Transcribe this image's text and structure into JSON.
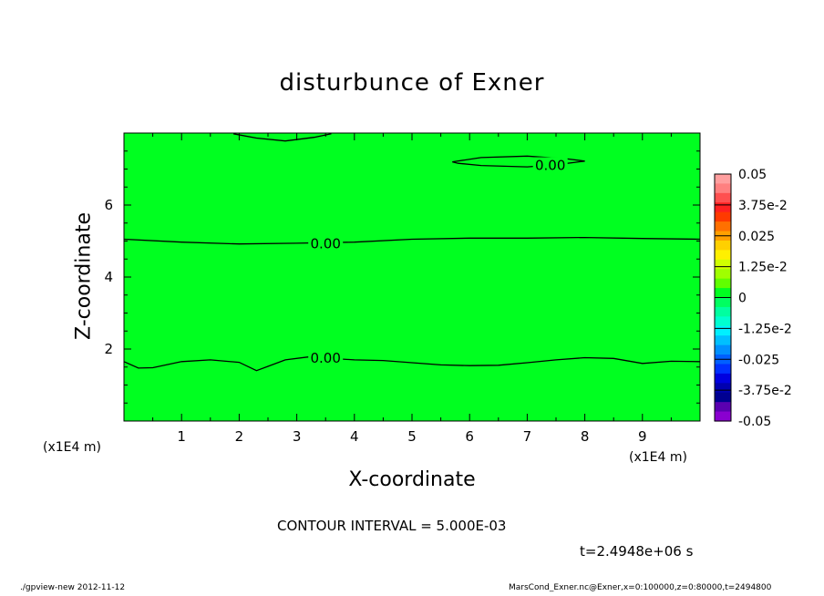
{
  "chart_data": {
    "type": "contour",
    "title": "disturbunce of Exner",
    "xlabel": "X-coordinate",
    "ylabel": "Z-coordinate",
    "x_unit_label": "(x1E4 m)",
    "xlim": [
      0,
      10
    ],
    "ylim": [
      0,
      8
    ],
    "xticks": [
      "1",
      "2",
      "3",
      "4",
      "5",
      "6",
      "7",
      "8",
      "9"
    ],
    "yticks": [
      "2",
      "4",
      "6"
    ],
    "field_color": "#00ff20",
    "contour_labels": [
      {
        "text": "0.00",
        "x": 3.5,
        "z": 1.75
      },
      {
        "text": "0.00",
        "x": 3.5,
        "z": 4.92
      },
      {
        "text": "0.00",
        "x": 7.4,
        "z": 7.1
      }
    ],
    "contours": [
      {
        "name": "lower",
        "points": [
          [
            0,
            1.65
          ],
          [
            0.25,
            1.47
          ],
          [
            0.5,
            1.48
          ],
          [
            1.0,
            1.65
          ],
          [
            1.5,
            1.7
          ],
          [
            2.0,
            1.63
          ],
          [
            2.3,
            1.4
          ],
          [
            2.5,
            1.52
          ],
          [
            2.8,
            1.7
          ],
          [
            3.2,
            1.78
          ],
          [
            4.0,
            1.7
          ],
          [
            4.5,
            1.68
          ],
          [
            5.0,
            1.62
          ],
          [
            5.5,
            1.56
          ],
          [
            6.0,
            1.54
          ],
          [
            6.5,
            1.55
          ],
          [
            7.0,
            1.62
          ],
          [
            7.5,
            1.7
          ],
          [
            8.0,
            1.76
          ],
          [
            8.5,
            1.74
          ],
          [
            9.0,
            1.6
          ],
          [
            9.5,
            1.66
          ],
          [
            10,
            1.65
          ]
        ]
      },
      {
        "name": "middle",
        "points": [
          [
            0,
            5.05
          ],
          [
            1.0,
            4.97
          ],
          [
            2.0,
            4.92
          ],
          [
            3.0,
            4.94
          ],
          [
            4.0,
            4.97
          ],
          [
            5.0,
            5.05
          ],
          [
            6.0,
            5.08
          ],
          [
            7.0,
            5.08
          ],
          [
            8.0,
            5.1
          ],
          [
            9.0,
            5.07
          ],
          [
            10,
            5.05
          ]
        ]
      },
      {
        "name": "upper-closed",
        "points": [
          [
            5.7,
            7.2
          ],
          [
            6.2,
            7.32
          ],
          [
            7.0,
            7.36
          ],
          [
            7.7,
            7.28
          ],
          [
            8.0,
            7.22
          ],
          [
            7.5,
            7.12
          ],
          [
            7.0,
            7.06
          ],
          [
            6.2,
            7.1
          ],
          [
            5.8,
            7.16
          ],
          [
            5.7,
            7.2
          ]
        ]
      },
      {
        "name": "top-edge",
        "points": [
          [
            1.9,
            7.98
          ],
          [
            2.3,
            7.86
          ],
          [
            2.8,
            7.78
          ],
          [
            3.3,
            7.88
          ],
          [
            3.6,
            7.98
          ]
        ]
      }
    ],
    "colorbar": {
      "labels": [
        "0.05",
        "3.75e-2",
        "0.025",
        "1.25e-2",
        "0",
        "-1.25e-2",
        "-0.025",
        "-3.75e-2",
        "-0.05"
      ],
      "colors": [
        "#ff9f9f",
        "#ff8080",
        "#ff5050",
        "#ff2020",
        "#ff3a00",
        "#ff7000",
        "#ffa000",
        "#ffd000",
        "#fff000",
        "#d0ff00",
        "#a0ff00",
        "#60ff00",
        "#00ff20",
        "#00ff60",
        "#00ffa0",
        "#00ffd0",
        "#00f0ff",
        "#00c0ff",
        "#0090ff",
        "#0060ff",
        "#0030ff",
        "#0000e0",
        "#0000b0",
        "#000090",
        "#5a00b0",
        "#8a00d0"
      ]
    }
  },
  "annotations": {
    "contour_interval": "CONTOUR INTERVAL = 5.000E-03",
    "time": "t=2.4948e+06 s",
    "footer_left": "./gpview-new  2012-11-12",
    "footer_right": "MarsCond_Exner.nc@Exner,x=0:100000,z=0:80000,t=2494800"
  }
}
